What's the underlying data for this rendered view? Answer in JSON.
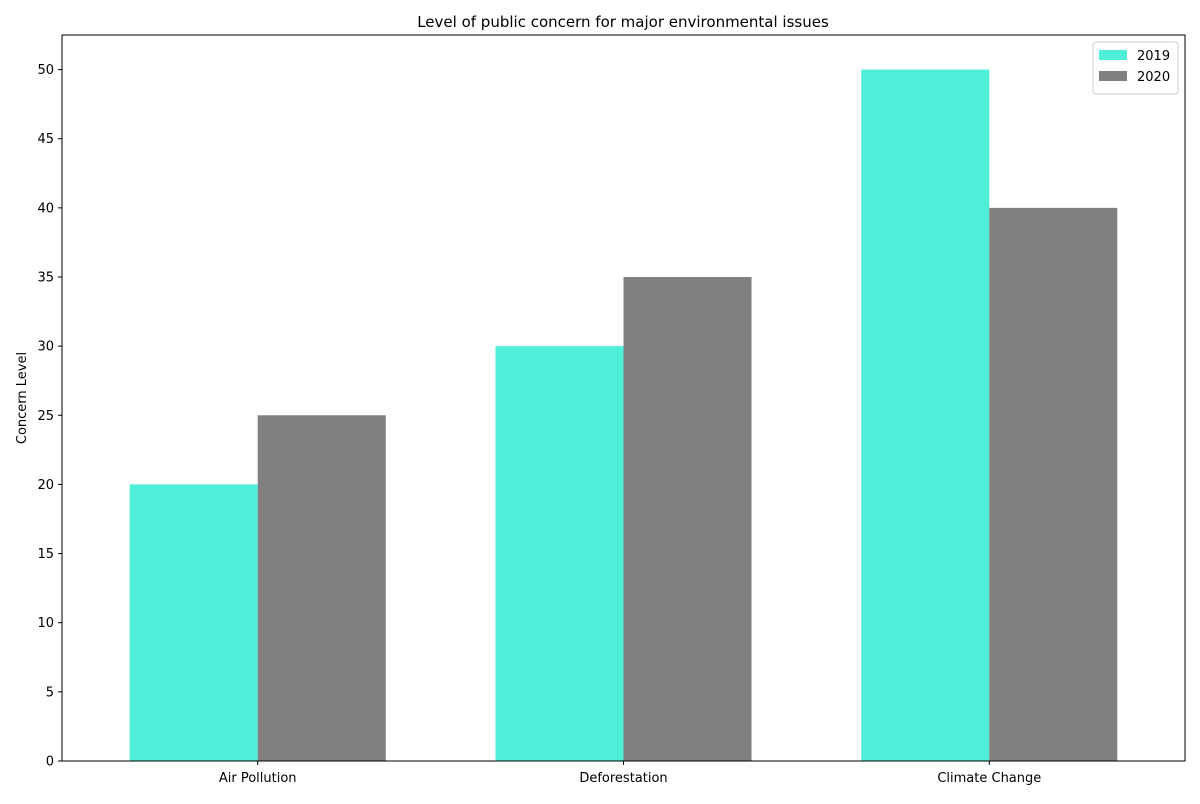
{
  "chart_data": {
    "type": "bar",
    "title": "Level of public concern for major environmental issues",
    "xlabel": "",
    "ylabel": "Concern Level",
    "categories": [
      "Air Pollution",
      "Deforestation",
      "Climate Change"
    ],
    "series": [
      {
        "name": "2019",
        "values": [
          20,
          30,
          50
        ],
        "color": "#4eeed8"
      },
      {
        "name": "2020",
        "values": [
          25,
          35,
          40
        ],
        "color": "#808080"
      }
    ],
    "ylim": [
      0,
      52.5
    ],
    "yticks": [
      0,
      5,
      10,
      15,
      20,
      25,
      30,
      35,
      40,
      45,
      50
    ],
    "grid": false,
    "legend": {
      "position": "top-right",
      "entries": [
        "2019",
        "2020"
      ]
    }
  }
}
